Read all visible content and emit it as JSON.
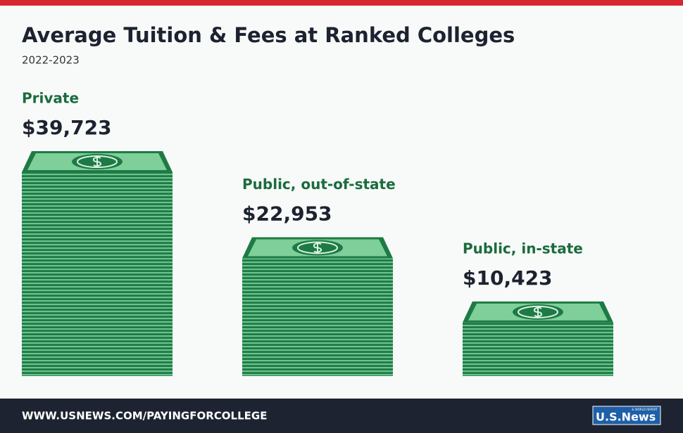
{
  "chart_data": {
    "type": "bar",
    "title": "Average Tuition & Fees at Ranked Colleges",
    "subtitle": "2022-2023",
    "categories": [
      "Private",
      "Public, out-of-state",
      "Public, in-state"
    ],
    "values": [
      39723,
      22953,
      10423
    ],
    "value_labels": [
      "$39,723",
      "$22,953",
      "$10,423"
    ],
    "color": "#1e7a45"
  },
  "footer": {
    "url": "WWW.USNEWS.COM/PAYINGFORCOLLEGE",
    "logo": "U.S.News",
    "logo_small": "& WORLD REPORT"
  }
}
